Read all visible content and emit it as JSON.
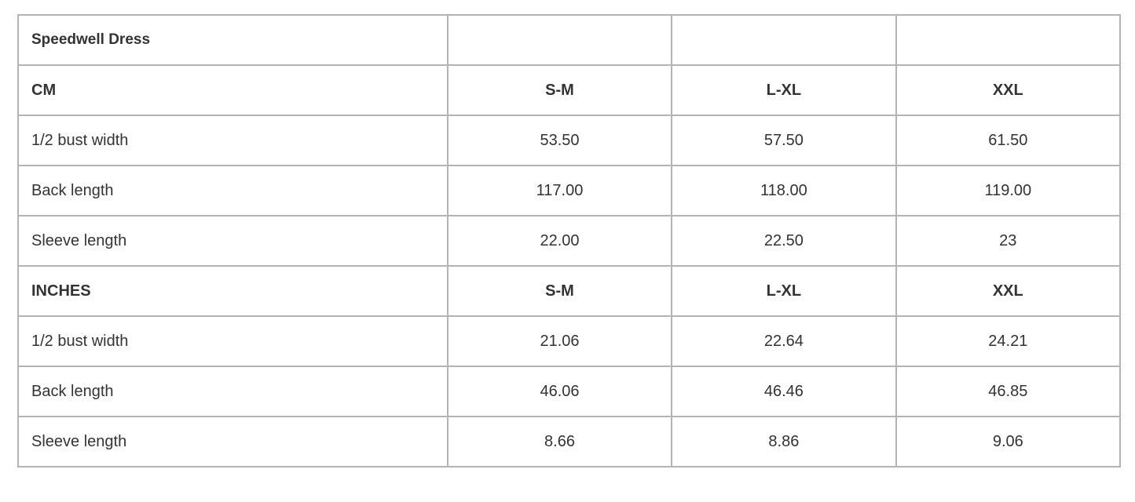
{
  "table": {
    "title": "Speedwell Dress",
    "rows": [
      {
        "label": "CM",
        "values": [
          "S-M",
          "L-XL",
          "XXL"
        ],
        "header": true
      },
      {
        "label": "1/2 bust width",
        "values": [
          "53.50",
          "57.50",
          "61.50"
        ]
      },
      {
        "label": "Back length",
        "values": [
          "117.00",
          "118.00",
          "119.00"
        ]
      },
      {
        "label": "Sleeve length",
        "values": [
          "22.00",
          "22.50",
          "23"
        ]
      },
      {
        "label": "INCHES",
        "values": [
          "S-M",
          "L-XL",
          "XXL"
        ],
        "header": true
      },
      {
        "label": "1/2 bust width",
        "values": [
          "21.06",
          "22.64",
          "24.21"
        ]
      },
      {
        "label": "Back length",
        "values": [
          "46.06",
          "46.46",
          "46.85"
        ]
      },
      {
        "label": "Sleeve length",
        "values": [
          "8.66",
          "8.86",
          "9.06"
        ]
      }
    ]
  }
}
